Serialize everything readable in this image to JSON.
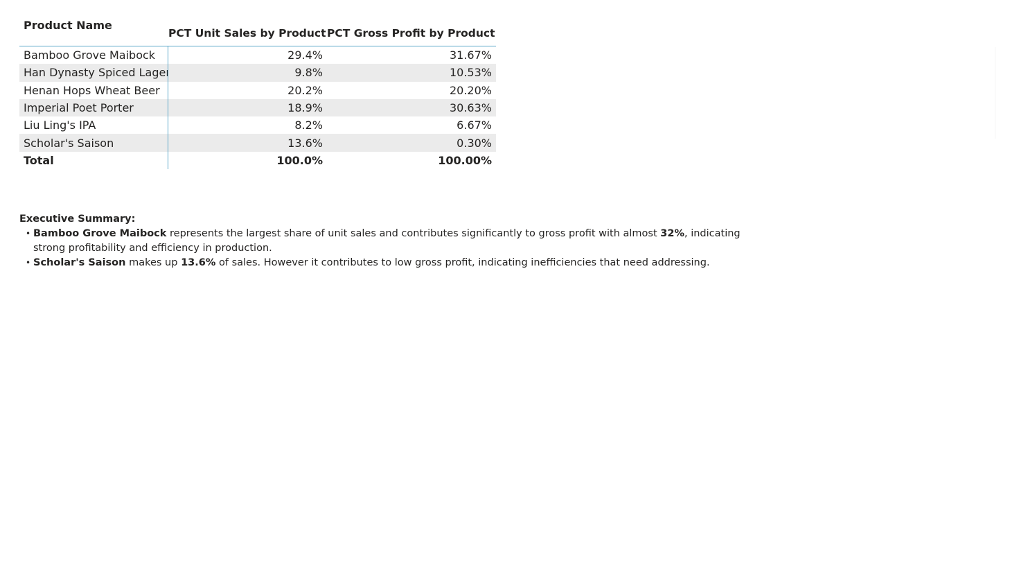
{
  "table": {
    "headers": {
      "product": "Product Name",
      "units": "PCT Unit Sales by Product",
      "profit": "PCT Gross Profit by Product"
    },
    "rows": [
      {
        "product": "Bamboo Grove Maibock",
        "units": "29.4%",
        "profit": "31.67%"
      },
      {
        "product": "Han Dynasty Spiced Lager",
        "units": "9.8%",
        "profit": "10.53%"
      },
      {
        "product": "Henan Hops Wheat Beer",
        "units": "20.2%",
        "profit": "20.20%"
      },
      {
        "product": "Imperial Poet Porter",
        "units": "18.9%",
        "profit": "30.63%"
      },
      {
        "product": "Liu Ling's IPA",
        "units": "8.2%",
        "profit": "6.67%"
      },
      {
        "product": "Scholar's Saison",
        "units": "13.6%",
        "profit": "0.30%"
      }
    ],
    "total": {
      "product": "Total",
      "units": "100.0%",
      "profit": "100.00%"
    }
  },
  "summary": {
    "title": "Executive Summary:",
    "bullets": [
      {
        "bold1": "Bamboo Grove Maibock",
        "text1": " represents the largest share of unit sales and contributes significantly to gross profit with almost ",
        "bold2": "32%",
        "text2": ", indicating strong profitability and efficiency in production."
      },
      {
        "bold1": "Scholar's Saison",
        "text1": " makes up ",
        "bold2": "13.6%",
        "text2": " of sales. However it contributes to low gross profit, indicating inefficiencies that need addressing."
      }
    ]
  }
}
